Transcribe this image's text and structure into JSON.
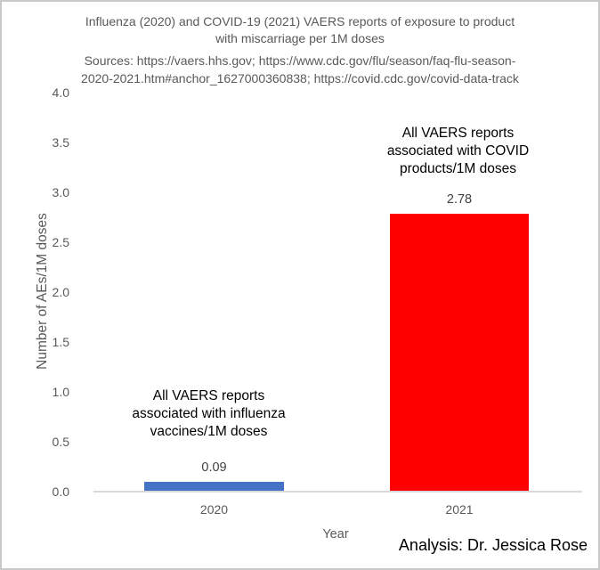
{
  "header": {
    "title_lines": [
      "Influenza (2020) and COVID-19 (2021) VAERS reports of exposure to product",
      "with miscarriage per 1M doses"
    ],
    "source_lines": [
      "Sources: https://vaers.hhs.gov; https://www.cdc.gov/flu/season/faq-flu-season-",
      "2020-2021.htm#anchor_1627000360838; https://covid.cdc.gov/covid-data-track"
    ]
  },
  "chart_data": {
    "type": "bar",
    "title": "Influenza (2020) and COVID-19 (2021) VAERS reports of exposure to product with miscarriage per 1M doses",
    "subtitle": "Sources: https://vaers.hhs.gov; https://www.cdc.gov/flu/season/faq-flu-season-2020-2021.htm#anchor_1627000360838; https://covid.cdc.gov/covid-data-track",
    "categories": [
      "2020",
      "2021"
    ],
    "values": [
      0.09,
      2.78
    ],
    "data_labels": [
      "0.09",
      "2.78"
    ],
    "bar_colors": [
      "#4472C4",
      "#FF0000"
    ],
    "xlabel": "Year",
    "ylabel": "Number of AEs/1M doses",
    "ylim": [
      0,
      4
    ],
    "ytick_step": 0.5,
    "yticks": [
      "4.0",
      "3.5",
      "3.0",
      "2.5",
      "2.0",
      "1.5",
      "1.0",
      "0.5",
      "0.0"
    ],
    "grid": false,
    "legend": false,
    "annotations": [
      {
        "category": "2020",
        "lines": [
          "All VAERS reports",
          "associated with influenza",
          "vaccines/1M doses"
        ]
      },
      {
        "category": "2021",
        "lines": [
          "All VAERS reports",
          "associated with COVID",
          "products/1M doses"
        ]
      }
    ]
  },
  "footer": {
    "credit": "Analysis: Dr. Jessica Rose"
  },
  "colors": {
    "bar_2020": "#4472C4",
    "bar_2021": "#FF0000",
    "axis_text": "#595959",
    "data_label_text": "#404040",
    "annotation_text": "#000000",
    "axis_line": "#D9D9D9",
    "page_border": "#C9C9C9",
    "background": "#FFFFFF"
  }
}
